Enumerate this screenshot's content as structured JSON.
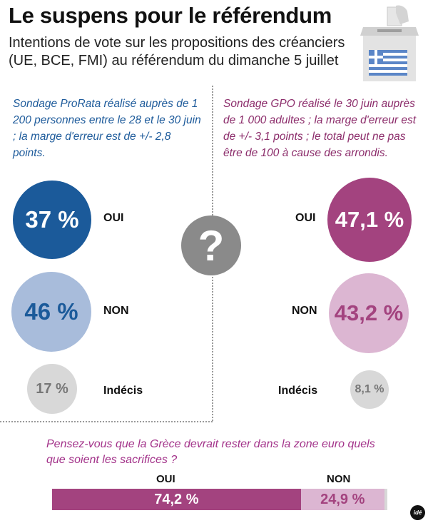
{
  "header": {
    "title": "Le suspens pour le référendum",
    "subtitle": "Intentions de vote sur les propositions des créanciers (UE, BCE, FMI) au référendum du dimanche 5 juillet"
  },
  "left_poll": {
    "note": "Sondage ProRata réalisé auprès de 1 200 personnes entre le 28 et le 30 juin ; la marge d'erreur est de +/- 2,8 points.",
    "oui_label": "OUI",
    "oui_value": "37 %",
    "non_label": "NON",
    "non_value": "46 %",
    "indecis_label": "Indécis",
    "indecis_value": "17 %"
  },
  "right_poll": {
    "note": "Sondage GPO réalisé le 30 juin auprès de 1 000 adultes ; la marge d'erreur est de +/- 3,1 points ; le total peut ne pas être de 100 à cause des arrondis.",
    "oui_label": "OUI",
    "oui_value": "47,1 %",
    "non_label": "NON",
    "non_value": "43,2 %",
    "indecis_label": "Indécis",
    "indecis_value": "8,1 %"
  },
  "center_icon": {
    "symbol": "?",
    "icon": "question-mark-icon"
  },
  "ballot_icon": "ballot-box-greek-flag-icon",
  "euro_question": {
    "text": "Pensez-vous que la Grèce devrait rester dans la zone euro quels que soient les sacrifices ?",
    "oui_header": "OUI",
    "non_header": "NON",
    "oui_value": "74,2 %",
    "non_value": "24,9 %"
  },
  "logo_text": "idé",
  "colors": {
    "prorata_oui": "#1b5a9a",
    "prorata_non": "#a8bcdb",
    "gpo_oui": "#a3437f",
    "gpo_non": "#dcb6d2",
    "indecis": "#d8d8d8",
    "question": "#8a8a8a"
  },
  "chart_data": [
    {
      "type": "pie",
      "title": "",
      "categories": [
        "OUI",
        "NON",
        "Indécis"
      ],
      "values": [
        37,
        46,
        17
      ]
    },
    {
      "type": "pie",
      "title": "",
      "categories": [
        "OUI",
        "NON",
        "Indécis"
      ],
      "values": [
        47.1,
        43.2,
        8.1
      ]
    },
    {
      "type": "bar",
      "title": "Pensez-vous que la Grèce devrait rester dans la zone euro quels que soient les sacrifices ?",
      "categories": [
        "OUI",
        "NON"
      ],
      "values": [
        74.2,
        24.9
      ]
    }
  ]
}
